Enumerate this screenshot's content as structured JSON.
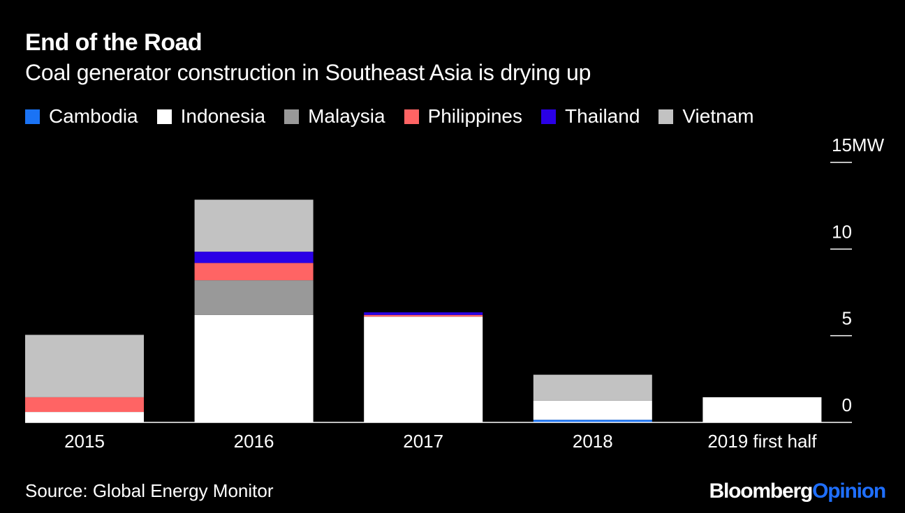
{
  "header": {
    "title": "End of the Road",
    "subtitle": "Coal generator construction in Southeast Asia is drying up"
  },
  "footer": {
    "source": "Source: Global Energy Monitor",
    "brand_main": "Bloomberg",
    "brand_sub": "Opinion"
  },
  "colors": {
    "background": "#000000",
    "Cambodia": "#1a73f5",
    "Indonesia": "#ffffff",
    "Malaysia": "#999999",
    "Philippines": "#ff6464",
    "Thailand": "#2a00e6",
    "Vietnam": "#c2c2c2",
    "brand_accent": "#1f6fff"
  },
  "chart_data": {
    "type": "bar",
    "stacked": true,
    "title": "End of the Road",
    "subtitle": "Coal generator construction in Southeast Asia is drying up",
    "categories": [
      "2015",
      "2016",
      "2017",
      "2018",
      "2019 first half"
    ],
    "series": [
      {
        "name": "Cambodia",
        "color": "#1a73f5",
        "values": [
          0,
          0,
          0,
          0.15,
          0
        ]
      },
      {
        "name": "Indonesia",
        "color": "#ffffff",
        "values": [
          0.6,
          6.2,
          6.1,
          1.1,
          1.45
        ]
      },
      {
        "name": "Malaysia",
        "color": "#999999",
        "values": [
          0,
          2.0,
          0,
          0,
          0
        ]
      },
      {
        "name": "Philippines",
        "color": "#ff6464",
        "values": [
          0.85,
          1.0,
          0.1,
          0,
          0
        ]
      },
      {
        "name": "Thailand",
        "color": "#2a00e6",
        "values": [
          0,
          0.65,
          0.15,
          0,
          0
        ]
      },
      {
        "name": "Vietnam",
        "color": "#c2c2c2",
        "values": [
          3.6,
          3.0,
          0,
          1.5,
          0
        ]
      }
    ],
    "yticks": [
      0,
      5,
      10,
      15
    ],
    "ytick_labels": [
      "0",
      "5",
      "10",
      "15MW"
    ],
    "ylim": [
      0,
      15
    ],
    "yaxis_position": "right",
    "legend_position": "top-left",
    "grid": false
  }
}
